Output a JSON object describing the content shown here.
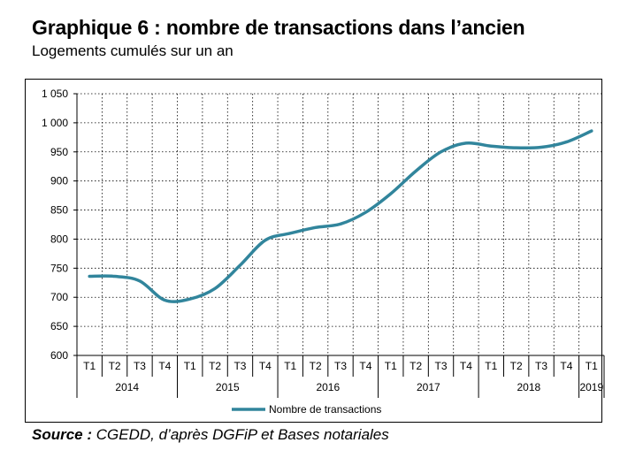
{
  "title": "Graphique 6 : nombre de transactions dans l’ancien",
  "subtitle": "Logements cumulés sur un an",
  "source_label": "Source :",
  "source_text": "CGEDD, d’après DGFiP et Bases notariales",
  "chart_data": {
    "type": "line",
    "title": "Graphique 6 : nombre de transactions dans l’ancien",
    "subtitle": "Logements cumulés sur un an",
    "xlabel": "",
    "ylabel": "",
    "ylim": [
      600,
      1050
    ],
    "yticks": [
      600,
      650,
      700,
      750,
      800,
      850,
      900,
      950,
      1000,
      1050
    ],
    "ytick_labels": [
      "600",
      "650",
      "700",
      "750",
      "800",
      "850",
      "900",
      "950",
      "1 000",
      "1 050"
    ],
    "categories": [
      "T1",
      "T2",
      "T3",
      "T4",
      "T1",
      "T2",
      "T3",
      "T4",
      "T1",
      "T2",
      "T3",
      "T4",
      "T1",
      "T2",
      "T3",
      "T4",
      "T1",
      "T2",
      "T3",
      "T4",
      "T1"
    ],
    "years": [
      {
        "label": "2014",
        "count": 4
      },
      {
        "label": "2015",
        "count": 4
      },
      {
        "label": "2016",
        "count": 4
      },
      {
        "label": "2017",
        "count": 4
      },
      {
        "label": "2018",
        "count": 4
      },
      {
        "label": "2019",
        "count": 1
      }
    ],
    "grid": true,
    "legend_position": "bottom-left",
    "series": [
      {
        "name": "Nombre de transactions",
        "color": "#31859c",
        "x": [
          "2014-T1",
          "2014-T2",
          "2014-T3",
          "2014-T4",
          "2015-T1",
          "2015-T2",
          "2015-T3",
          "2015-T4",
          "2016-T1",
          "2016-T2",
          "2016-T3",
          "2016-T4",
          "2017-T1",
          "2017-T2",
          "2017-T3",
          "2017-T4",
          "2018-T1",
          "2018-T2",
          "2018-T3",
          "2018-T4",
          "2019-T1"
        ],
        "values": [
          736,
          736,
          728,
          695,
          697,
          715,
          755,
          798,
          810,
          820,
          826,
          846,
          878,
          917,
          950,
          965,
          960,
          957,
          958,
          967,
          986
        ]
      }
    ]
  }
}
